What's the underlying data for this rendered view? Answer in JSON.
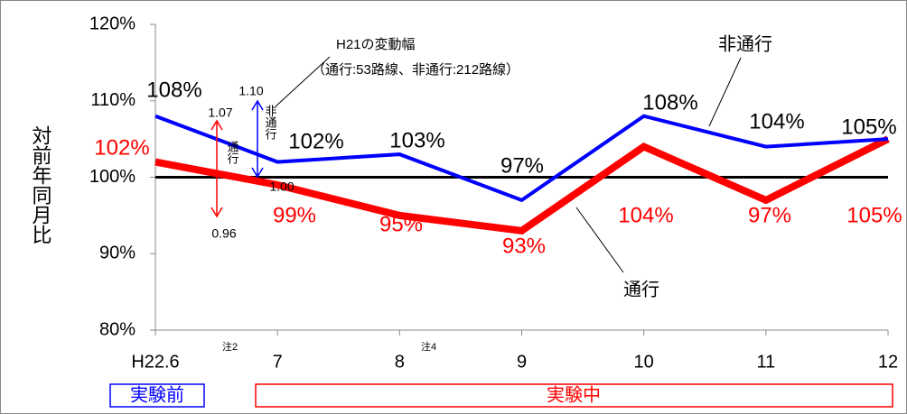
{
  "chart_data": {
    "type": "line",
    "y_label": "対前年同月比",
    "categories": [
      "H22.6",
      "7",
      "8",
      "9",
      "10",
      "11",
      "12"
    ],
    "series": [
      {
        "name": "非通行",
        "color": "#0000ff",
        "values": [
          108,
          102,
          103,
          97,
          108,
          104,
          105
        ],
        "value_labels": [
          "108%",
          "102%",
          "103%",
          "97%",
          "108%",
          "104%",
          "105%"
        ]
      },
      {
        "name": "通行",
        "color": "#ff0000",
        "values": [
          102,
          99,
          95,
          93,
          104,
          97,
          105
        ],
        "value_labels": [
          "102%",
          "99%",
          "95%",
          "93%",
          "104%",
          "97%",
          "105%"
        ]
      }
    ],
    "reference_line": 100,
    "ylim": [
      80,
      120
    ],
    "yticks": [
      {
        "value": 80,
        "label": "80%"
      },
      {
        "value": 90,
        "label": "90%"
      },
      {
        "value": 100,
        "label": "100%"
      },
      {
        "value": 110,
        "label": "110%"
      },
      {
        "value": 120,
        "label": "120%"
      }
    ],
    "annotations": {
      "range_title": "H21の変動幅",
      "range_note": "（通行:53路線、非通行:212路線）",
      "nontraffic_range": {
        "name": "非通行",
        "high": {
          "value": 1.1,
          "label": "1.10"
        },
        "low": {
          "value": 1,
          "label": "1.00"
        }
      },
      "traffic_range": {
        "name": "通行",
        "high": {
          "value": 1.07,
          "label": "1.07"
        },
        "low": {
          "value": 0.96,
          "label": "0.96"
        }
      },
      "notes": [
        "注2",
        "注4"
      ],
      "periods": [
        "実験前",
        "実験中"
      ]
    }
  }
}
